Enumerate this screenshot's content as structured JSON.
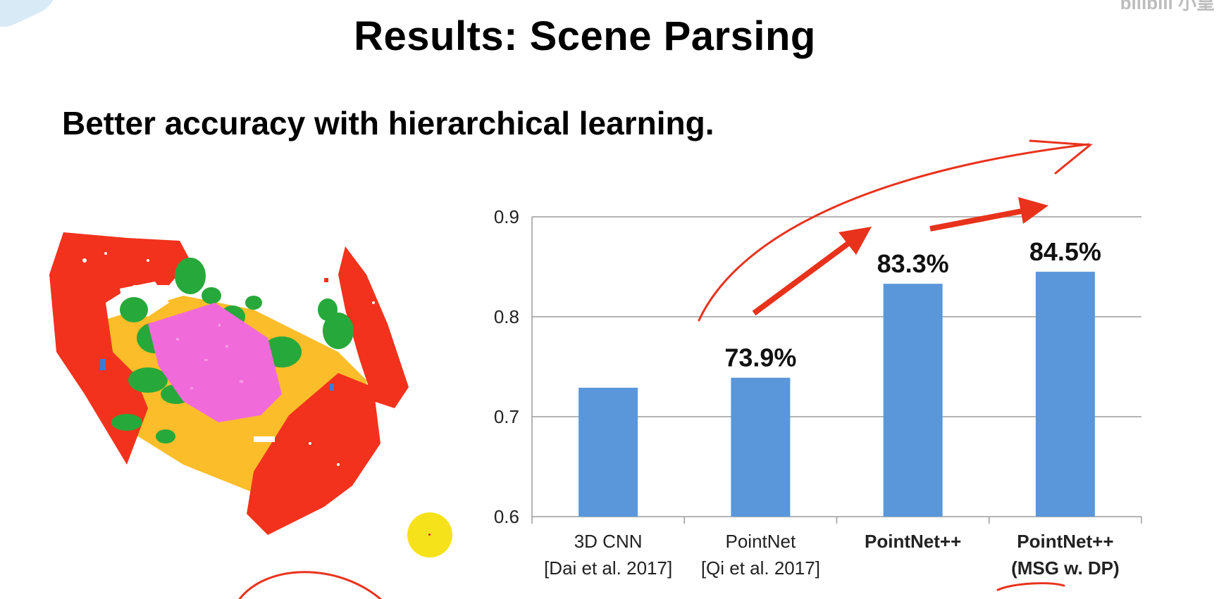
{
  "slide": {
    "title": "Results: Scene Parsing",
    "subtitle": "Better accuracy with hierarchical learning.",
    "watermark": "bilibili 小皇"
  },
  "colors": {
    "bar": "#5a97da",
    "grid": "#9b9b9b",
    "annotation": "#e8321c",
    "scene_red": "#f2321c",
    "scene_green": "#27a83a",
    "scene_yellow": "#fbbd2a",
    "scene_magenta": "#f06bd9",
    "scene_blue": "#3b7bd8",
    "highlight_dot": "#f6e21a"
  },
  "scene_image": {
    "icon": "segmented-point-cloud-image"
  },
  "chart_data": {
    "type": "bar",
    "categories": [
      [
        "3D CNN",
        "[Dai et al. 2017]"
      ],
      [
        "PointNet",
        "[Qi et al. 2017]"
      ],
      [
        "PointNet++"
      ],
      [
        "PointNet++",
        "(MSG w. DP)"
      ]
    ],
    "category_bold": [
      false,
      false,
      true,
      true
    ],
    "values": [
      0.729,
      0.739,
      0.833,
      0.845
    ],
    "data_labels": [
      "",
      "73.9%",
      "83.3%",
      "84.5%"
    ],
    "ylim": [
      0.6,
      0.9
    ],
    "yticks": [
      0.6,
      0.7,
      0.8,
      0.9
    ],
    "ytick_labels": [
      "0.6",
      "0.7",
      "0.8",
      "0.9"
    ],
    "grid": true,
    "title": "",
    "xlabel": "",
    "ylabel": ""
  }
}
